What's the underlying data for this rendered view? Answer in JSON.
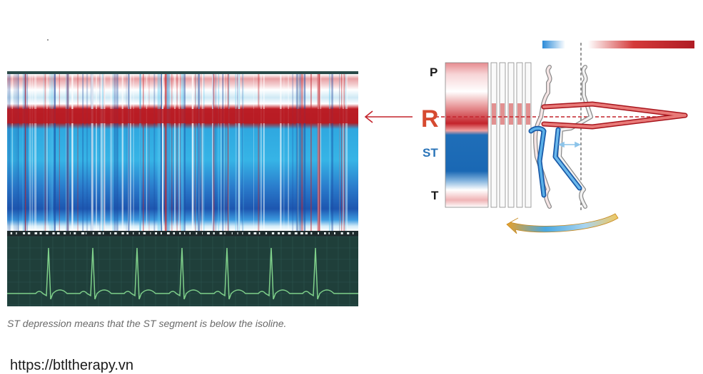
{
  "caption": "ST depression means that the ST segment is below the isoline.",
  "url": "https://btltherapy.vn",
  "wave_labels": {
    "p": "P",
    "r": "R",
    "st": "ST",
    "t": "T"
  },
  "colors": {
    "red": "#c4242c",
    "dark_red": "#a8141c",
    "light_blue": "#34b4e4",
    "mid_blue": "#2a7cc8",
    "dark_blue": "#1a5aa8",
    "ecg_background": "#1f3f3a",
    "ecg_trace": "#7fd08a",
    "label_dark": "#1a1a1a",
    "st_blue": "#2a74b8",
    "r_red": "#d64a30",
    "arrow_orange": "#e8a028"
  }
}
